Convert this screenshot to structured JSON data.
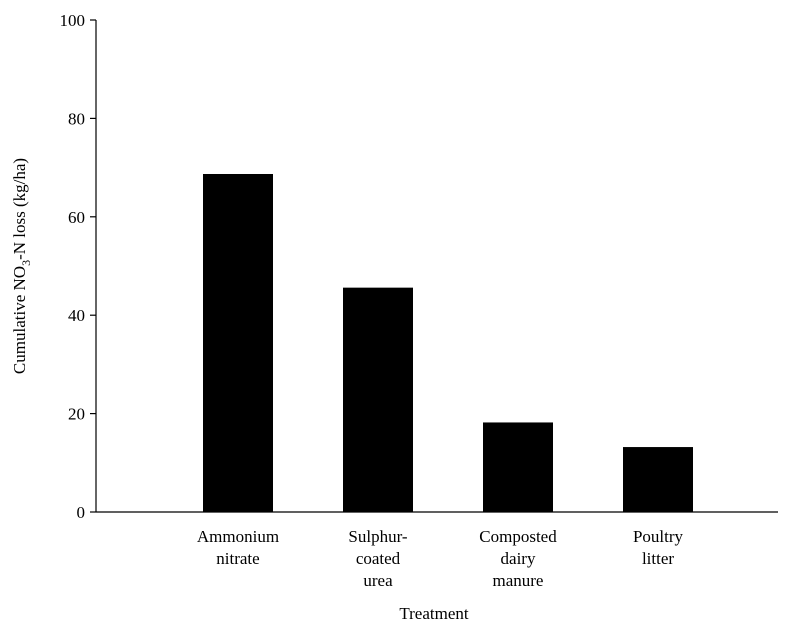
{
  "chart_data": {
    "type": "bar",
    "categories": [
      [
        "Ammonium",
        "nitrate"
      ],
      [
        "Sulphur-",
        "coated",
        "urea"
      ],
      [
        "Composted",
        "dairy",
        "manure"
      ],
      [
        "Poultry",
        "litter"
      ]
    ],
    "values": [
      68.7,
      45.6,
      18.2,
      13.2
    ],
    "xlabel": "Treatment",
    "ylabel": {
      "prefix": "Cumulative NO",
      "subscript": "3",
      "suffix": "-N loss (kg/ha)"
    },
    "ylim": [
      0,
      100
    ],
    "yticks": [
      0,
      20,
      40,
      60,
      80,
      100
    ],
    "bar_color": "#000000",
    "grid": false,
    "legend": "none"
  }
}
